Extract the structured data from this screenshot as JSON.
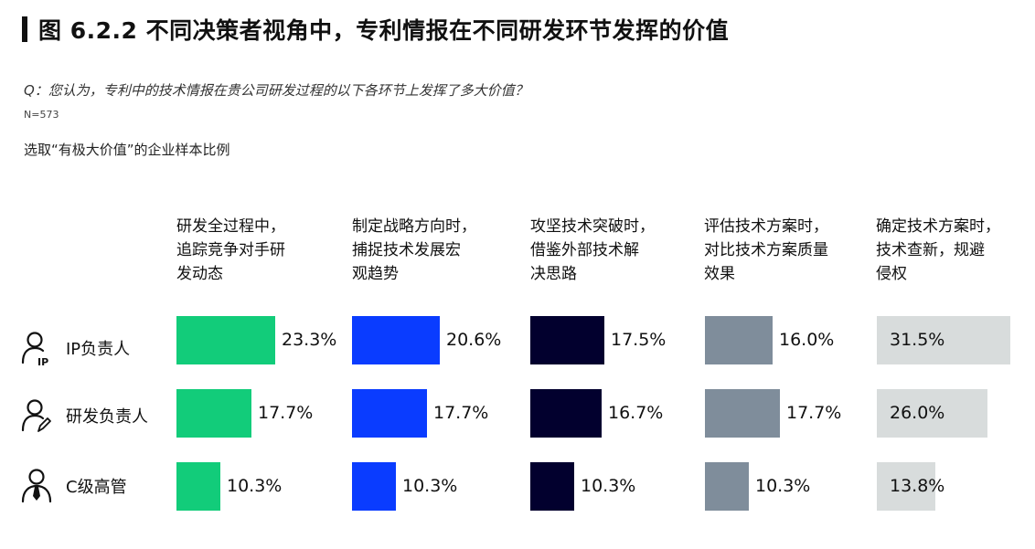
{
  "header": {
    "title": "图 6.2.2 不同决策者视角中，专利情报在不同研发环节发挥的价值",
    "question": "Q：您认为，专利中的技术情报在贵公司研发过程的以下各环节上发挥了多大价值？",
    "sample_size": "N=573",
    "subtitle": "选取“有极大价值”的企业样本比例"
  },
  "icons": [
    "ip-person-icon",
    "rd-person-icon",
    "executive-icon"
  ],
  "chart_data": {
    "type": "bar",
    "categories": [
      "研发全过程中，\n追踪竞争对手研\n发动态",
      "制定战略方向时，\n捕捉技术发展宏\n观趋势",
      "攻坚技术突破时，\n借鉴外部技术解\n决思路",
      "评估技术方案时，\n对比技术方案质量\n效果",
      "确定技术方案时，\n技术查新，规避\n侵权"
    ],
    "rows": [
      "IP负责人",
      "研发负责人",
      "C级高管"
    ],
    "values": [
      [
        23.3,
        20.6,
        17.5,
        16.0,
        31.5
      ],
      [
        17.7,
        17.7,
        16.7,
        17.7,
        26.0
      ],
      [
        10.3,
        10.3,
        10.3,
        10.3,
        13.8
      ]
    ],
    "labels": [
      [
        "23.3%",
        "20.6%",
        "17.5%",
        "16.0%",
        "31.5%"
      ],
      [
        "17.7%",
        "17.7%",
        "16.7%",
        "17.7%",
        "26.0%"
      ],
      [
        "10.3%",
        "10.3%",
        "10.3%",
        "10.3%",
        "13.8%"
      ]
    ],
    "colors": [
      "#12cc7a",
      "#0a3cff",
      "#02002e",
      "#7f8d9b",
      "#d8dcdc"
    ]
  }
}
